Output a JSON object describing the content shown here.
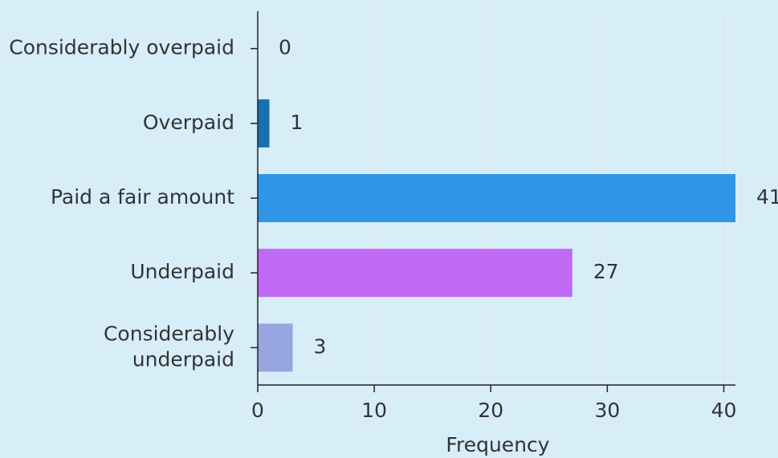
{
  "chart_data": {
    "type": "bar",
    "orientation": "horizontal",
    "categories": [
      "Considerably overpaid",
      "Overpaid",
      "Paid a fair amount",
      "Underpaid",
      "Considerably underpaid"
    ],
    "values": [
      0,
      1,
      41,
      27,
      3
    ],
    "colors": [
      "#1a6faf",
      "#1a6faf",
      "#3096e8",
      "#c069f5",
      "#97a6e0"
    ],
    "xlabel": "Frequency",
    "xlim": [
      0,
      41
    ],
    "xticks": [
      0,
      10,
      20,
      30,
      40
    ],
    "grid": true
  }
}
